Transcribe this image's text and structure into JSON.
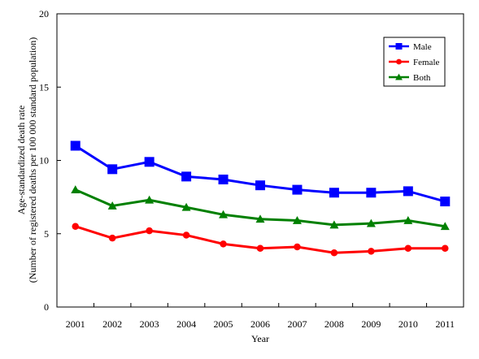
{
  "chart_data": {
    "type": "line",
    "title": "",
    "xlabel": "Year",
    "ylabel": [
      "Age-standardized death rate",
      "(Number of registered deaths per 100 000 standard population)"
    ],
    "categories": [
      "2001",
      "2002",
      "2003",
      "2004",
      "2005",
      "2006",
      "2007",
      "2008",
      "2009",
      "2010",
      "2011"
    ],
    "ylim": [
      0,
      20
    ],
    "yticks": [
      "0",
      "5",
      "10",
      "15",
      "20"
    ],
    "grid": false,
    "legend_position": "top-right",
    "series": [
      {
        "name": "Male",
        "color": "#0000ff",
        "marker": "square",
        "values": [
          11.0,
          9.4,
          9.9,
          8.9,
          8.7,
          8.3,
          8.0,
          7.8,
          7.8,
          7.9,
          7.2
        ]
      },
      {
        "name": "Female",
        "color": "#ff0000",
        "marker": "circle",
        "values": [
          5.5,
          4.7,
          5.2,
          4.9,
          4.3,
          4.0,
          4.1,
          3.7,
          3.8,
          4.0,
          4.0
        ]
      },
      {
        "name": "Both",
        "color": "#008000",
        "marker": "triangle",
        "values": [
          8.0,
          6.9,
          7.3,
          6.8,
          6.3,
          6.0,
          5.9,
          5.6,
          5.7,
          5.9,
          5.5
        ]
      }
    ]
  }
}
